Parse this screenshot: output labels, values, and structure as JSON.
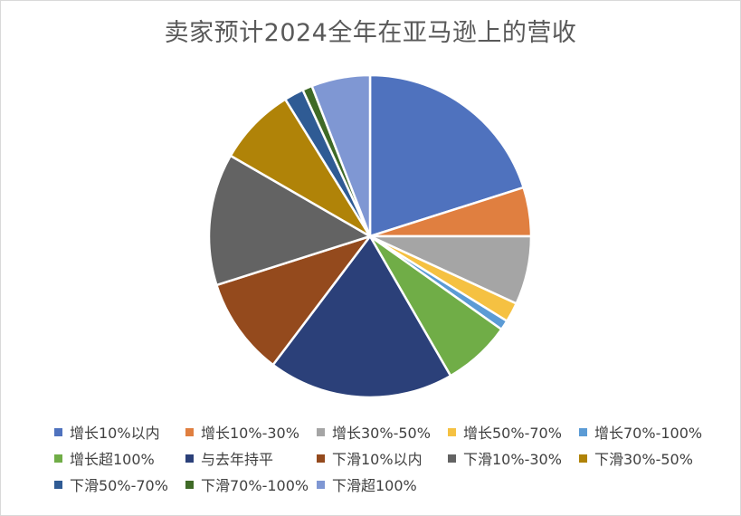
{
  "chart_data": {
    "type": "pie",
    "title": "卖家预计2024全年在亚马逊上的营收",
    "legend_position": "bottom",
    "start_angle_deg": 0,
    "direction": "clockwise",
    "slices": [
      {
        "label": "增长10%以内",
        "value": 20.5,
        "color": "#4f72be"
      },
      {
        "label": "增长10%-30%",
        "value": 5.0,
        "color": "#e07f40"
      },
      {
        "label": "增长30%-50%",
        "value": 7.0,
        "color": "#a5a5a5"
      },
      {
        "label": "增长50%-70%",
        "value": 2.0,
        "color": "#f5c142"
      },
      {
        "label": "增长70%-100%",
        "value": 1.0,
        "color": "#5b9bd5"
      },
      {
        "label": "增长超100%",
        "value": 7.0,
        "color": "#70ad47"
      },
      {
        "label": "与去年持平",
        "value": 19.0,
        "color": "#2b4079"
      },
      {
        "label": "下滑10%以内",
        "value": 10.0,
        "color": "#944a1d"
      },
      {
        "label": "下滑10%-30%",
        "value": 13.5,
        "color": "#636363"
      },
      {
        "label": "下滑30%-50%",
        "value": 8.0,
        "color": "#b08308"
      },
      {
        "label": "下滑50%-70%",
        "value": 2.0,
        "color": "#2f5b94"
      },
      {
        "label": "下滑70%-100%",
        "value": 1.0,
        "color": "#3f6a27"
      },
      {
        "label": "下滑超100%",
        "value": 6.0,
        "color": "#7f97d3"
      }
    ]
  }
}
